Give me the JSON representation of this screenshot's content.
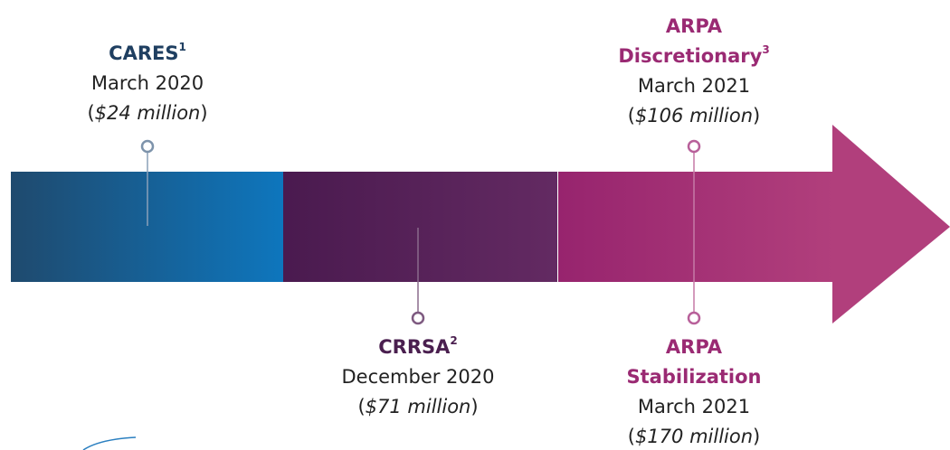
{
  "timeline": {
    "events": [
      {
        "name": [
          "CARES"
        ],
        "note": "1",
        "date": "March 2020",
        "amount": "($24 million)"
      },
      {
        "name": [
          "CRRSA"
        ],
        "note": "2",
        "date": "December 2020",
        "amount": "($71 million)"
      },
      {
        "name": [
          "ARPA",
          "Discretionary"
        ],
        "note": "3",
        "date": "March 2021",
        "amount": "($106 million)"
      },
      {
        "name": [
          "ARPA",
          "Stabilization"
        ],
        "date": "March 2021",
        "amount": "($170 million)"
      }
    ]
  }
}
